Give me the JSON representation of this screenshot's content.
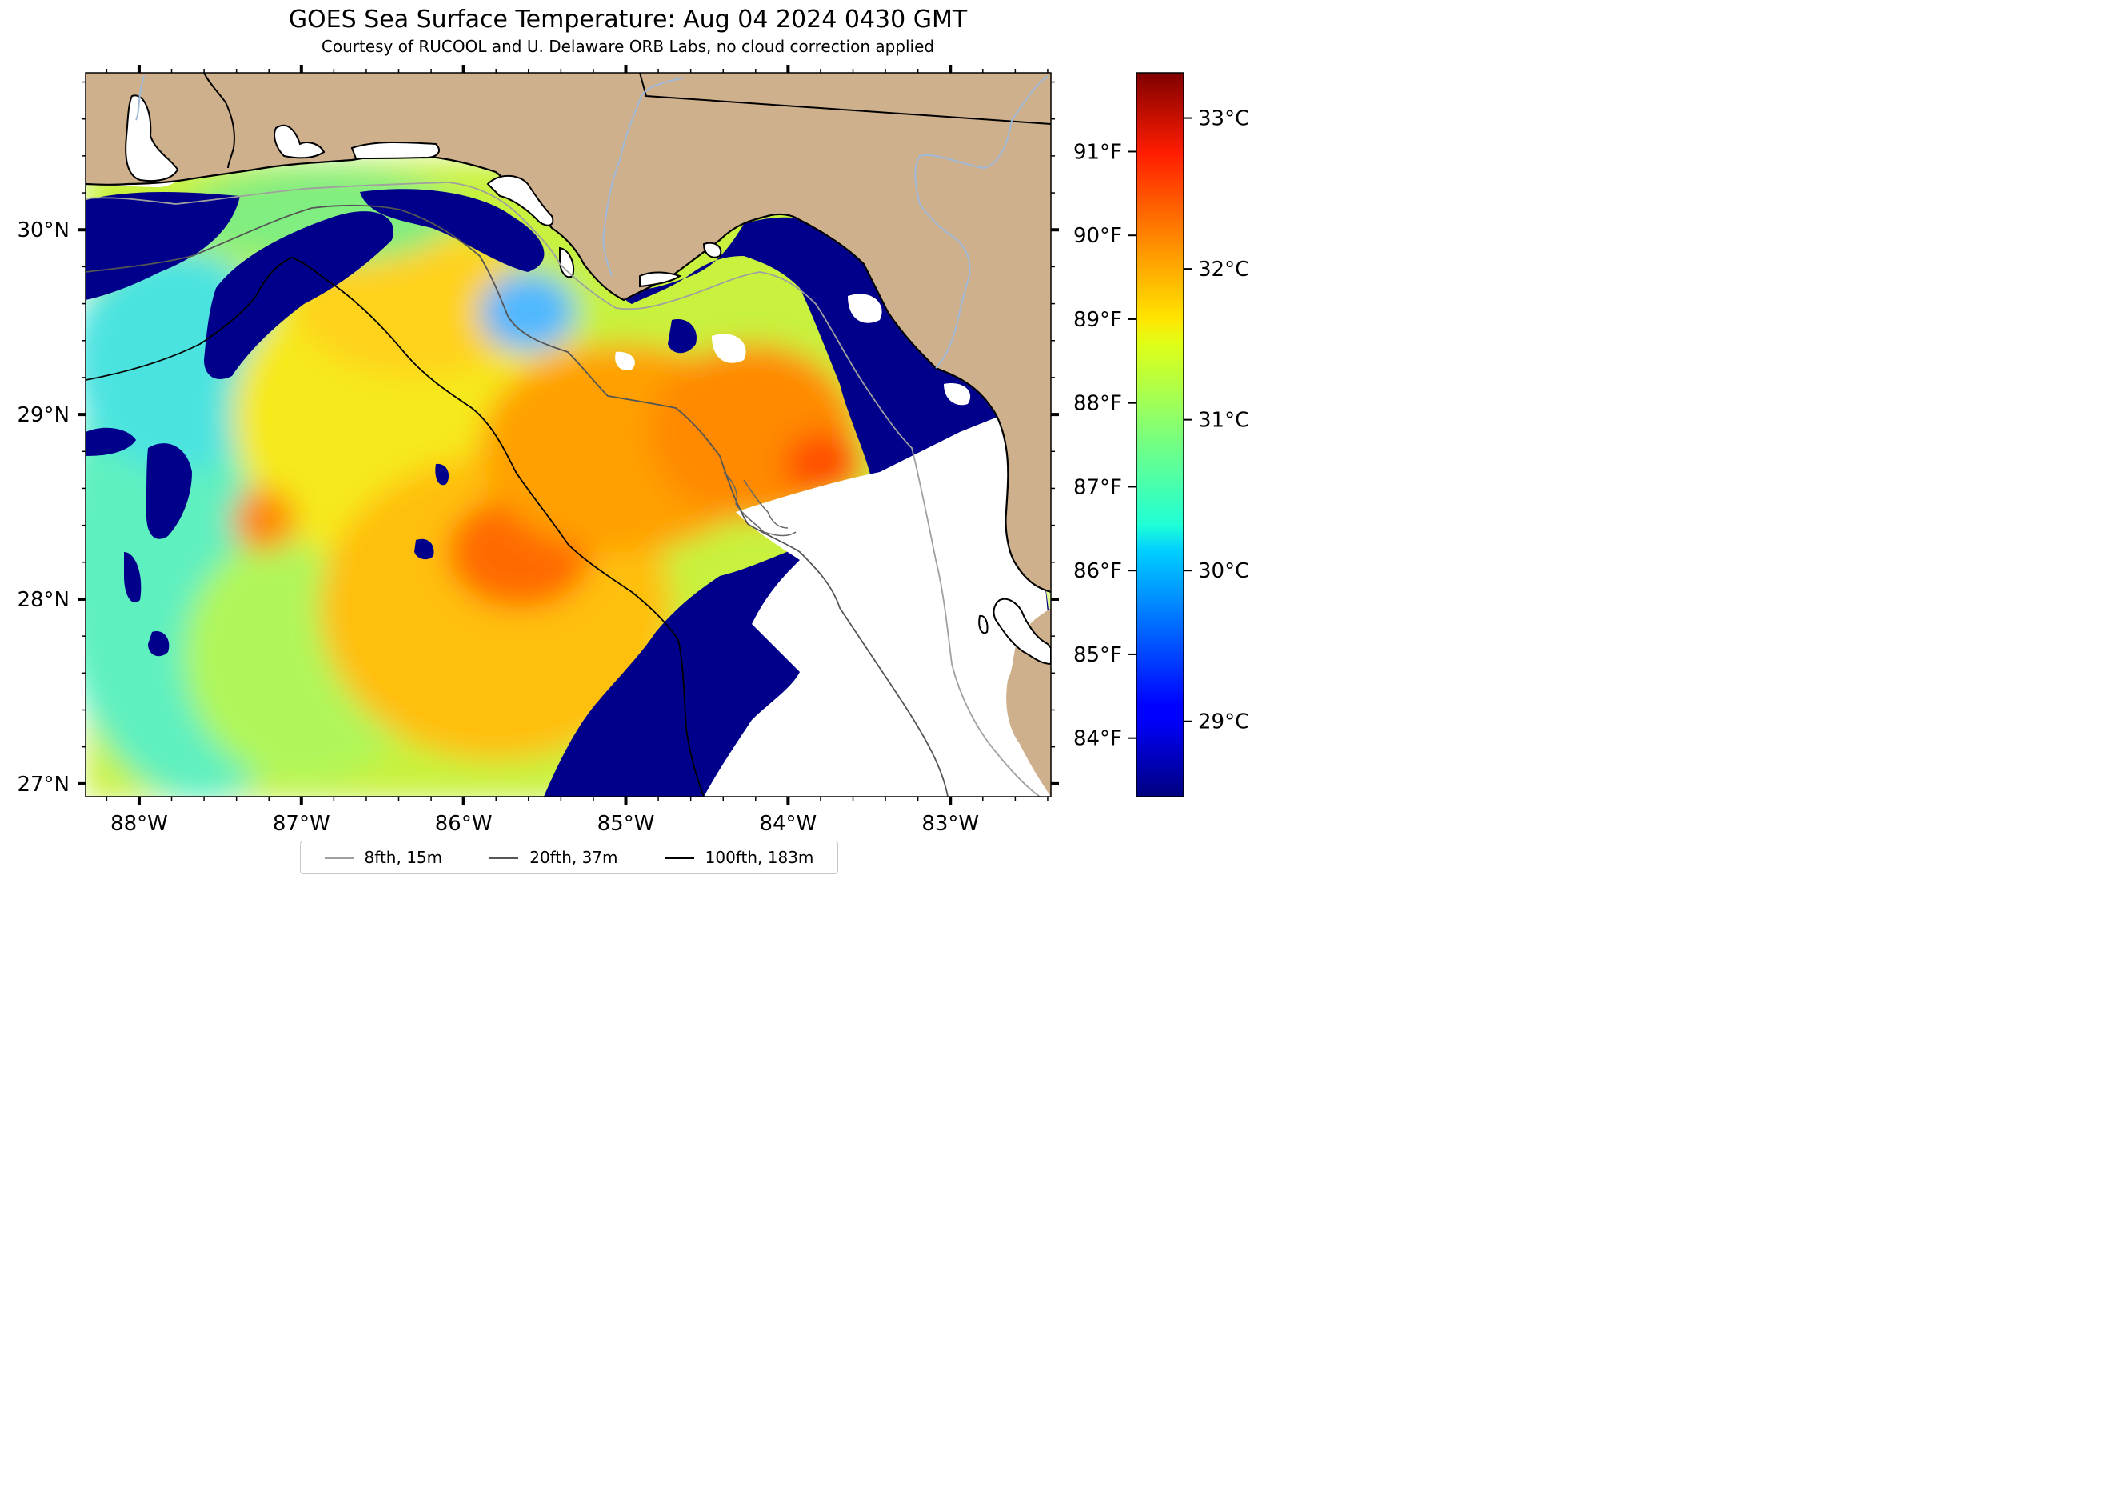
{
  "title": "GOES Sea Surface Temperature: Aug 04 2024 0430 GMT",
  "subtitle": "Courtesy of RUCOOL and U. Delaware ORB Labs, no cloud correction applied",
  "map": {
    "lon_range": [
      -88.33,
      -82.38
    ],
    "lat_range": [
      26.93,
      30.85
    ],
    "lon_ticks": [
      {
        "value": -88,
        "label": "88°W"
      },
      {
        "value": -87,
        "label": "87°W"
      },
      {
        "value": -86,
        "label": "86°W"
      },
      {
        "value": -85,
        "label": "85°W"
      },
      {
        "value": -84,
        "label": "84°W"
      },
      {
        "value": -83,
        "label": "83°W"
      }
    ],
    "lat_ticks": [
      {
        "value": 27,
        "label": "27°N"
      },
      {
        "value": 28,
        "label": "28°N"
      },
      {
        "value": 29,
        "label": "29°N"
      },
      {
        "value": 30,
        "label": "30°N"
      }
    ],
    "colors": {
      "land": "#cfb08c",
      "nodata": "#ffffff",
      "coastline": "#000000",
      "rivers": "#9fb8d8",
      "state_border": "#000000"
    }
  },
  "colorbar": {
    "colormap": "jet",
    "range_c": [
      28.5,
      33.3
    ],
    "celsius_ticks": [
      {
        "value": 29,
        "label": "29°C"
      },
      {
        "value": 30,
        "label": "30°C"
      },
      {
        "value": 31,
        "label": "31°C"
      },
      {
        "value": 32,
        "label": "32°C"
      },
      {
        "value": 33,
        "label": "33°C"
      }
    ],
    "fahrenheit_ticks": [
      {
        "value": 84,
        "label": "84°F"
      },
      {
        "value": 85,
        "label": "85°F"
      },
      {
        "value": 86,
        "label": "86°F"
      },
      {
        "value": 87,
        "label": "87°F"
      },
      {
        "value": 88,
        "label": "88°F"
      },
      {
        "value": 89,
        "label": "89°F"
      },
      {
        "value": 90,
        "label": "90°F"
      },
      {
        "value": 91,
        "label": "91°F"
      }
    ]
  },
  "legend": {
    "items": [
      {
        "label": "8fth, 15m",
        "color": "#a0a0a0"
      },
      {
        "label": "20fth, 37m",
        "color": "#555555"
      },
      {
        "label": "100fth, 183m",
        "color": "#000000"
      }
    ]
  }
}
